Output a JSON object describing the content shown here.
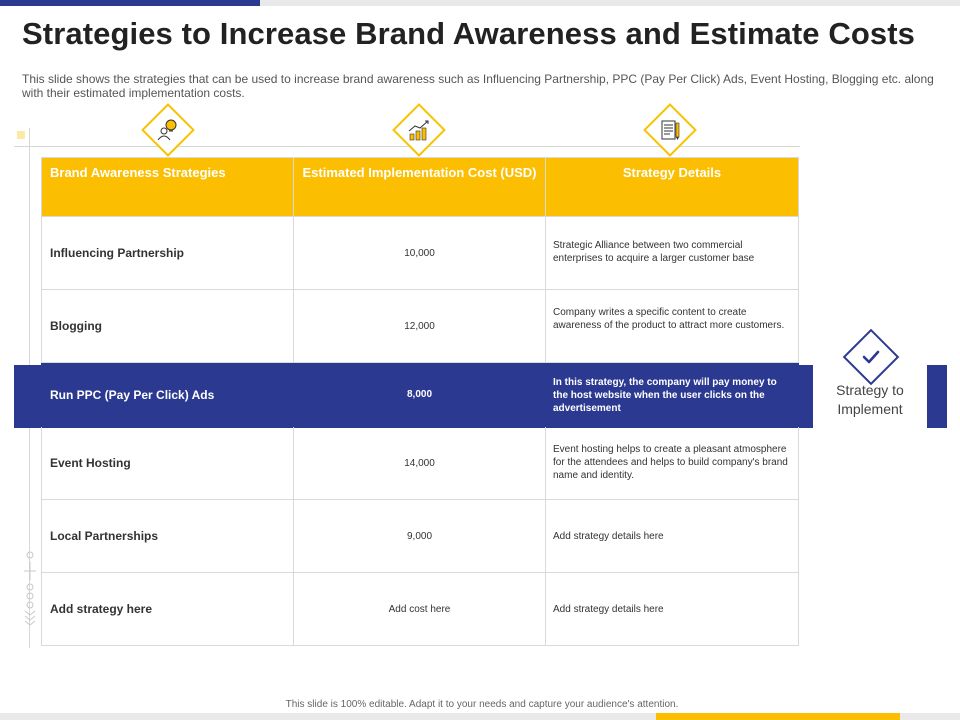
{
  "slide": {
    "title": "Strategies to Increase Brand Awareness and Estimate Costs",
    "subtitle": "This slide shows the strategies that can be used to increase brand awareness such as Influencing Partnership, PPC (Pay Per Click) Ads, Event Hosting, Blogging etc. along with their estimated implementation costs.",
    "footer": "This slide is 100% editable. Adapt it to your needs and capture your audience's attention."
  },
  "header_icons": [
    "idea-person-icon",
    "growth-chart-icon",
    "document-pencil-icon"
  ],
  "table": {
    "headers": [
      "Brand Awareness Strategies",
      "Estimated Implementation Cost (USD)",
      "Strategy Details"
    ],
    "rows": [
      {
        "strategy": "Influencing Partnership",
        "cost": "10,000",
        "details": "Strategic Alliance between two commercial enterprises to acquire a larger customer base"
      },
      {
        "strategy": "Blogging",
        "cost": "12,000",
        "details": "Company writes a specific content to create awareness of the product to attract more customers."
      },
      {
        "strategy": "Run PPC (Pay Per Click) Ads",
        "cost": "8,000",
        "details": "In this strategy, the company will pay money to the host website when the user clicks on the advertisement"
      },
      {
        "strategy": "Event Hosting",
        "cost": "14,000",
        "details": "Event hosting helps to create a pleasant atmosphere for the attendees and helps to build company's brand name and identity."
      },
      {
        "strategy": "Local Partnerships",
        "cost": "9,000",
        "details": "Add strategy details here"
      },
      {
        "strategy": "Add strategy here",
        "cost": "Add cost here",
        "details": "Add strategy details here"
      }
    ]
  },
  "callout": {
    "icon": "checkmark-icon",
    "label": "Strategy to Implement"
  },
  "colors": {
    "accent_yellow": "#fbbe00",
    "accent_blue": "#2b3990"
  }
}
